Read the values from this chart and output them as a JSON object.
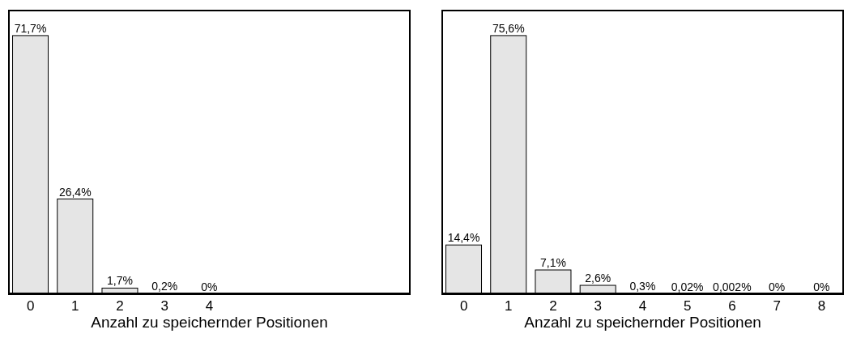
{
  "chart_data": [
    {
      "type": "bar",
      "xlabel": "Anzahl zu speichernder Positionen",
      "categories": [
        "0",
        "1",
        "2",
        "3",
        "4",
        null,
        null,
        null,
        null
      ],
      "color": "#e5e5e5",
      "values": [
        71.7,
        26.4,
        1.7,
        0.2,
        0,
        null,
        null,
        null,
        null
      ],
      "value_labels": [
        "71,7%",
        "26,4%",
        "1,7%",
        "0,2%",
        "0%",
        null,
        null,
        null,
        null
      ],
      "grid": false,
      "legend": false
    },
    {
      "type": "bar",
      "xlabel": "Anzahl zu speichernder Positionen",
      "categories": [
        "0",
        "1",
        "2",
        "3",
        "4",
        "5",
        "6",
        "7",
        "8"
      ],
      "color": "#e5e5e5",
      "values": [
        14.4,
        75.6,
        7.1,
        2.6,
        0.3,
        0.02,
        0.002,
        0,
        0
      ],
      "value_labels": [
        "14,4%",
        "75,6%",
        "7,1%",
        "2,6%",
        "0,3%",
        "0,02%",
        "0,002%",
        "0%",
        "0%"
      ],
      "grid": false,
      "legend": false
    }
  ]
}
